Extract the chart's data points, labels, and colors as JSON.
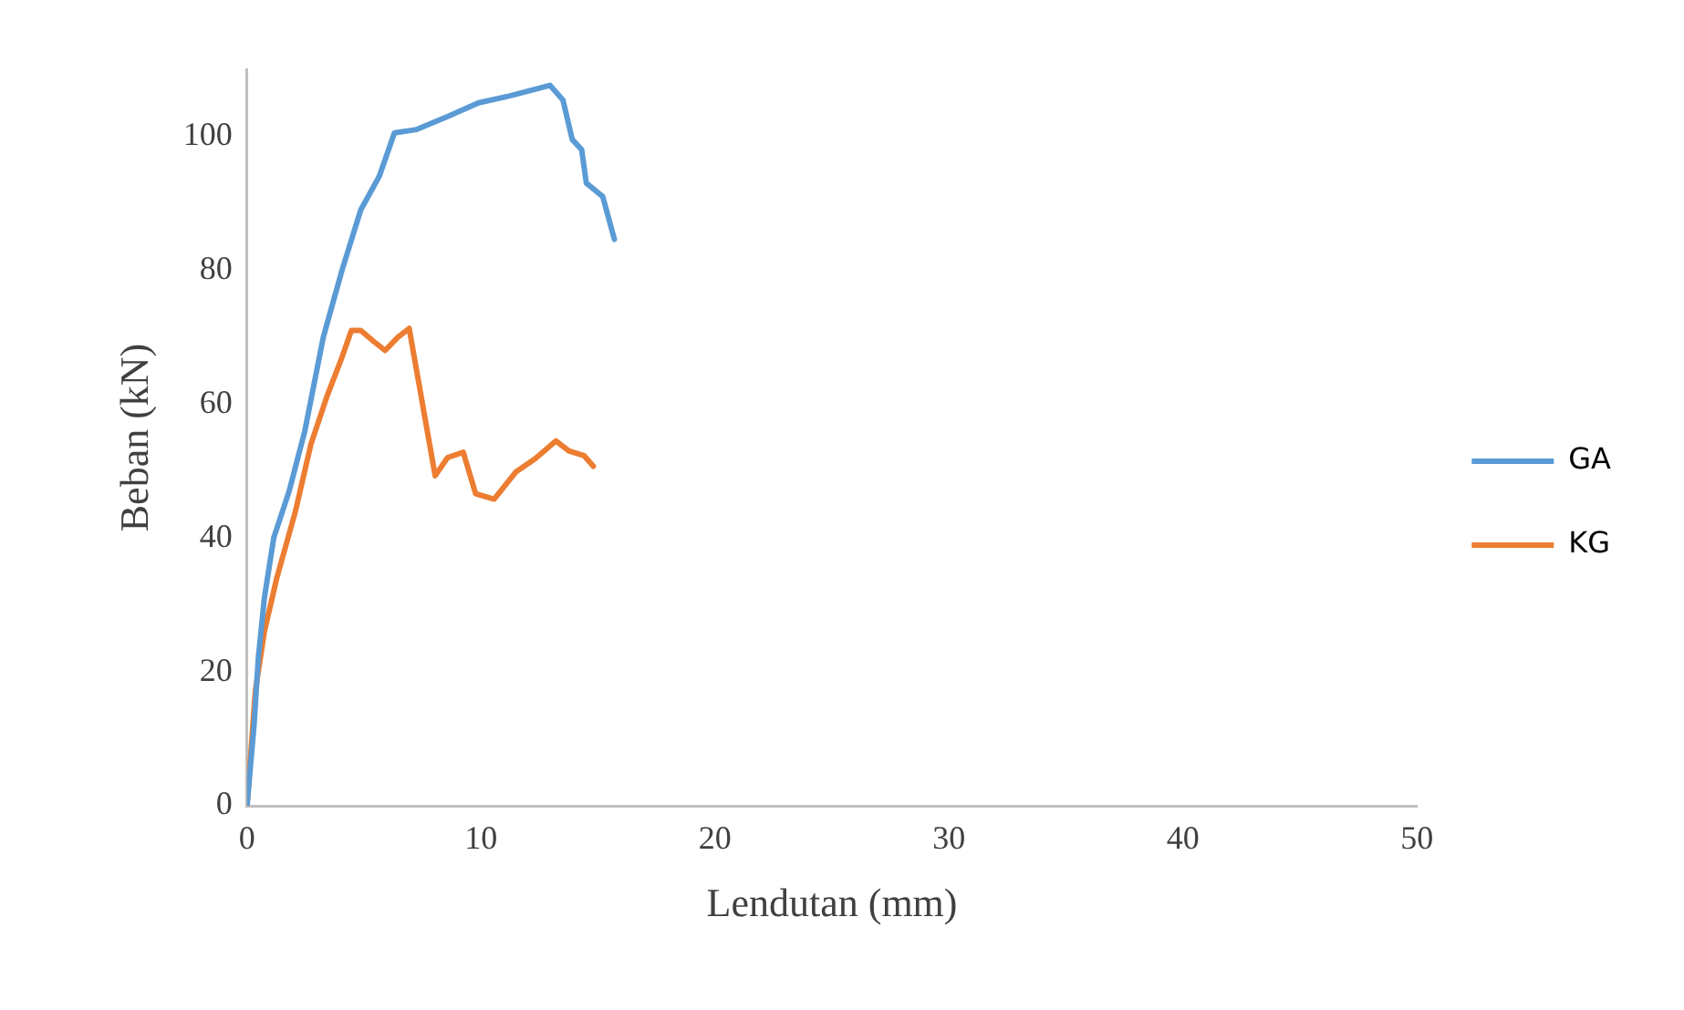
{
  "chart_data": {
    "type": "line",
    "xlabel": "Lendutan (mm)",
    "ylabel": "Beban (kN)",
    "xlim": [
      0,
      50
    ],
    "xticks": [
      0,
      10,
      20,
      30,
      40,
      50
    ],
    "ylim": [
      0,
      110
    ],
    "yticks": [
      0,
      20,
      40,
      60,
      80,
      100
    ],
    "grid": false,
    "legend": "right",
    "marker": "none",
    "line_style": "solid",
    "series": [
      {
        "name": "GA",
        "color": "#5b9bd5",
        "x": [
          0,
          0.3,
          0.48,
          0.74,
          1.14,
          1.8,
          2.47,
          3.26,
          4.06,
          4.86,
          5.65,
          6.3,
          7.25,
          8.6,
          9.9,
          11.2,
          12.95,
          13.5,
          13.9,
          14.3,
          14.5,
          15.2,
          15.7
        ],
        "values": [
          0,
          12,
          22,
          31,
          40,
          47,
          56,
          70,
          80,
          89,
          94,
          100.5,
          101,
          103,
          105,
          106,
          107.6,
          105.4,
          99.5,
          98,
          93,
          91,
          84.6
        ]
      },
      {
        "name": "KG",
        "color": "#ed7d31",
        "x": [
          0,
          0.35,
          0.74,
          1.27,
          2.07,
          2.73,
          3.4,
          4.06,
          4.46,
          4.86,
          5.4,
          5.9,
          6.45,
          6.93,
          8.04,
          8.57,
          9.24,
          9.77,
          10.56,
          11.5,
          12.3,
          13.2,
          13.75,
          14.4,
          14.8
        ],
        "values": [
          0,
          17,
          26,
          34,
          44,
          54,
          61,
          67,
          71,
          71,
          69.4,
          68,
          70,
          71.3,
          49.3,
          52,
          52.8,
          46.6,
          45.8,
          49.9,
          51.8,
          54.5,
          53,
          52.3,
          50.7
        ]
      }
    ]
  }
}
